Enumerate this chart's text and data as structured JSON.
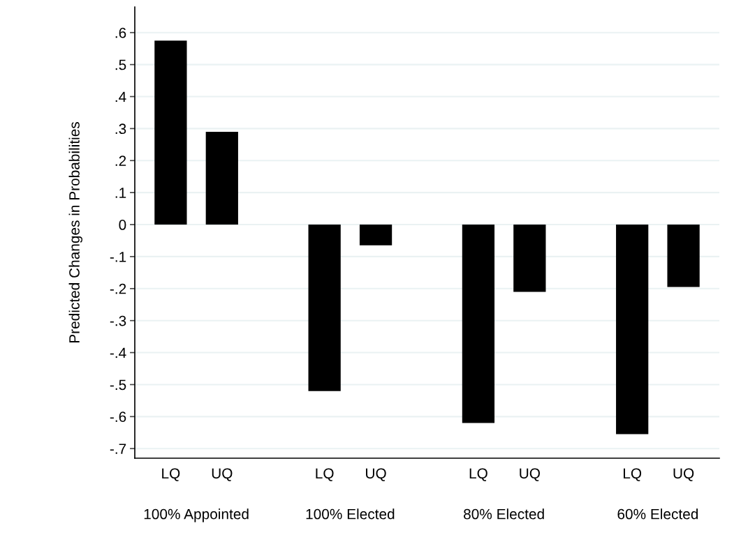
{
  "chart_data": {
    "type": "bar",
    "ylabel": "Predicted Changes in Probabilities",
    "categories": [
      "LQ",
      "UQ",
      null,
      "LQ",
      "UQ",
      null,
      "LQ",
      "UQ",
      null,
      "LQ",
      "UQ"
    ],
    "values": [
      0.575,
      0.29,
      null,
      -0.52,
      -0.065,
      null,
      -0.62,
      -0.21,
      null,
      -0.655,
      -0.195
    ],
    "color": "#000000",
    "ylim": [
      -0.73,
      0.68
    ],
    "yticks": [
      {
        "value": -0.7,
        "label": "-.7"
      },
      {
        "value": -0.6,
        "label": "-.6"
      },
      {
        "value": -0.5,
        "label": "-.5"
      },
      {
        "value": -0.4,
        "label": "-.4"
      },
      {
        "value": -0.3,
        "label": "-.3"
      },
      {
        "value": -0.2,
        "label": "-.2"
      },
      {
        "value": -0.1,
        "label": "-.1"
      },
      {
        "value": 0,
        "label": "0"
      },
      {
        "value": 0.1,
        "label": ".1"
      },
      {
        "value": 0.2,
        "label": ".2"
      },
      {
        "value": 0.3,
        "label": ".3"
      },
      {
        "value": 0.4,
        "label": ".4"
      },
      {
        "value": 0.5,
        "label": ".5"
      },
      {
        "value": 0.6,
        "label": ".6"
      }
    ],
    "grid": "y",
    "annotations": [
      "100% Appointed",
      "100% Elected",
      "80% Elected",
      "60% Elected"
    ]
  }
}
